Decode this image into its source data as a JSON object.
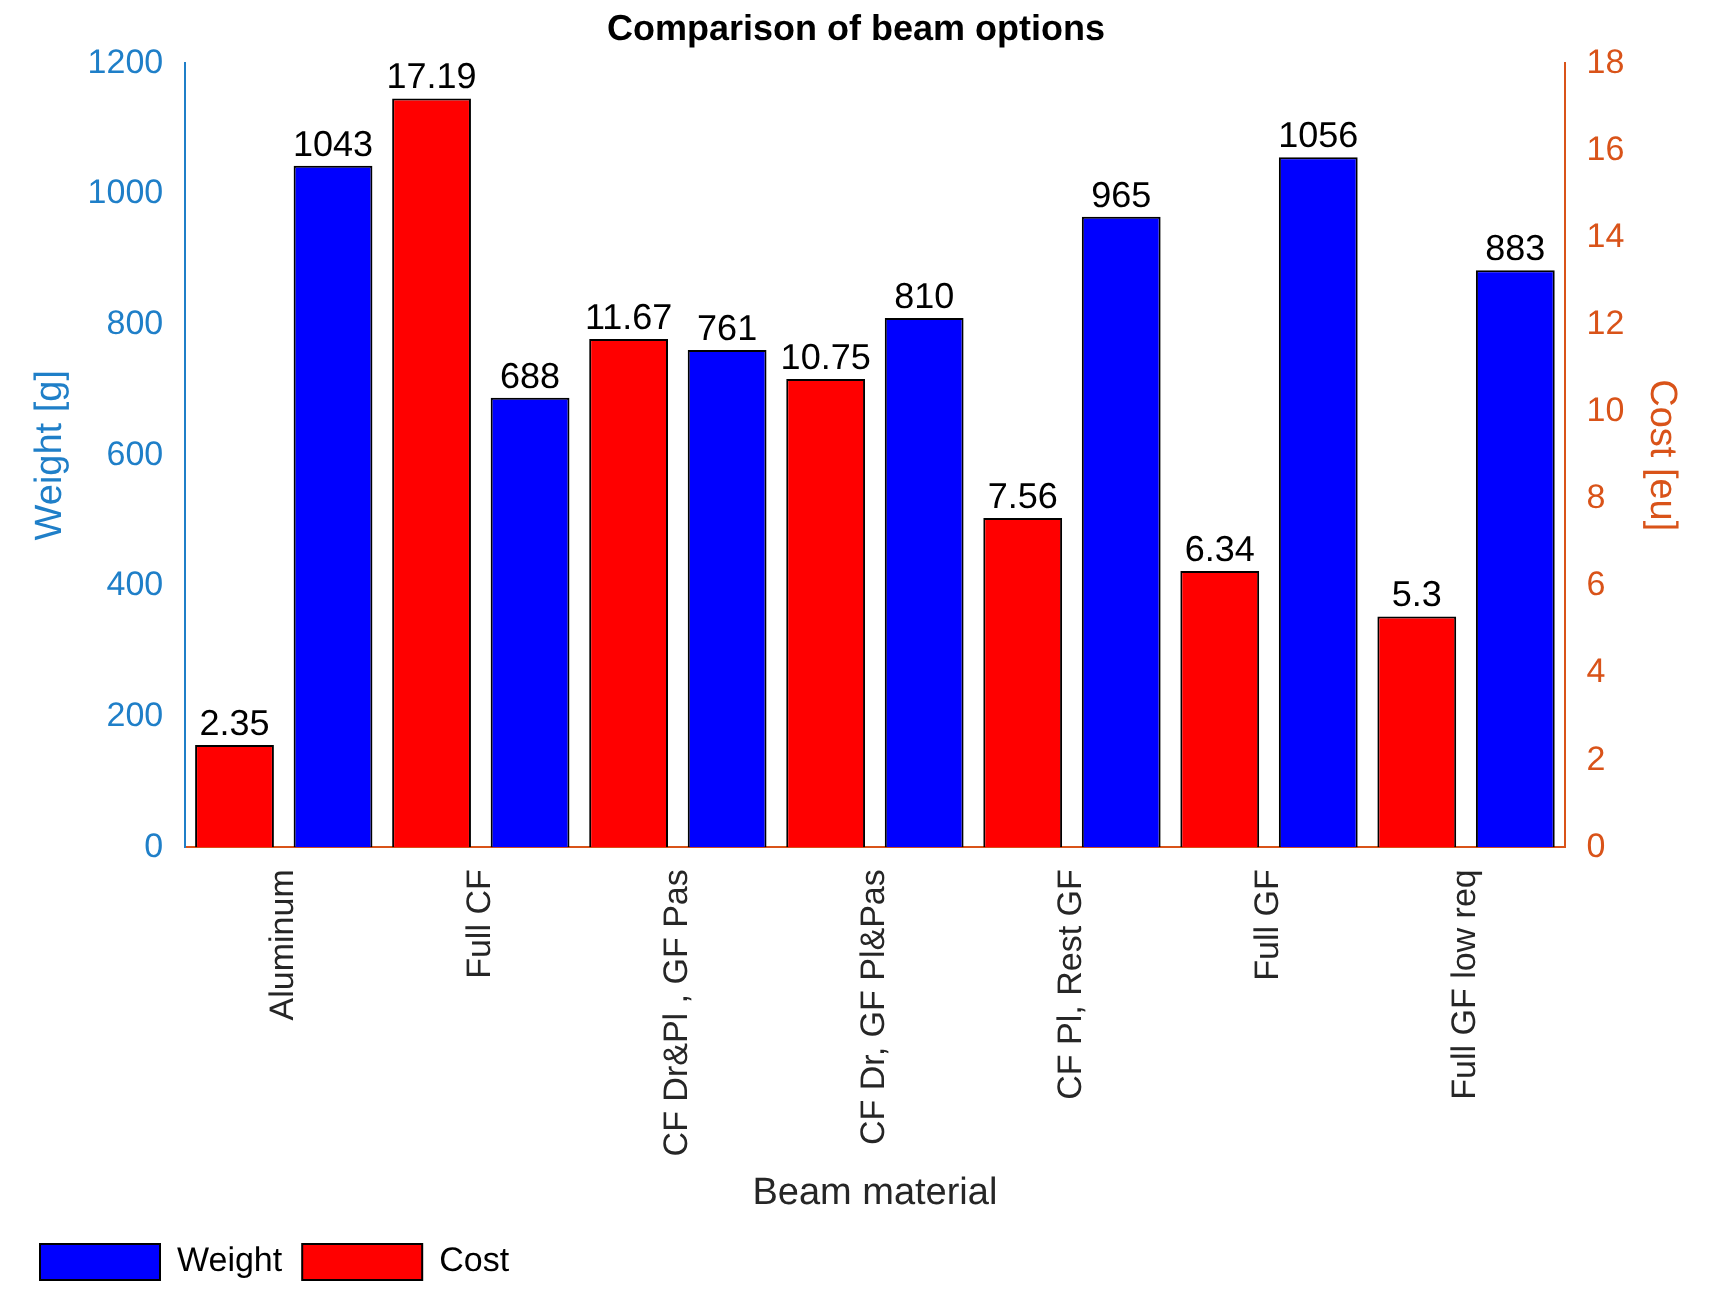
{
  "chart_data": {
    "type": "bar",
    "title": "Comparison of beam options",
    "xlabel": "Beam material",
    "ylabel": "Weight [g]",
    "y2label": "Cost [eu]",
    "categories": [
      "Aluminum",
      "Full CF",
      "CF Dr&Pl , GF Pas",
      "CF Dr, GF Pl&Pas",
      "CF Pl, Rest GF",
      "Full GF",
      "Full GF low req"
    ],
    "series": [
      {
        "name": "Cost",
        "color": "#ff0000",
        "axis": "y2",
        "values": [
          2.35,
          17.19,
          11.67,
          10.75,
          7.56,
          6.34,
          5.3
        ]
      },
      {
        "name": "Weight",
        "color": "#0000ff",
        "values": [
          1043,
          688,
          761,
          810,
          965,
          1056,
          883
        ]
      }
    ],
    "ylim": [
      0,
      1200
    ],
    "yticks": [
      0,
      200,
      400,
      600,
      800,
      1000,
      1200
    ],
    "y2lim": [
      0,
      18
    ],
    "y2ticks": [
      0,
      2,
      4,
      6,
      8,
      10,
      12,
      14,
      16,
      18
    ],
    "data_labels": true,
    "grid": false,
    "legend": "bottom left"
  }
}
